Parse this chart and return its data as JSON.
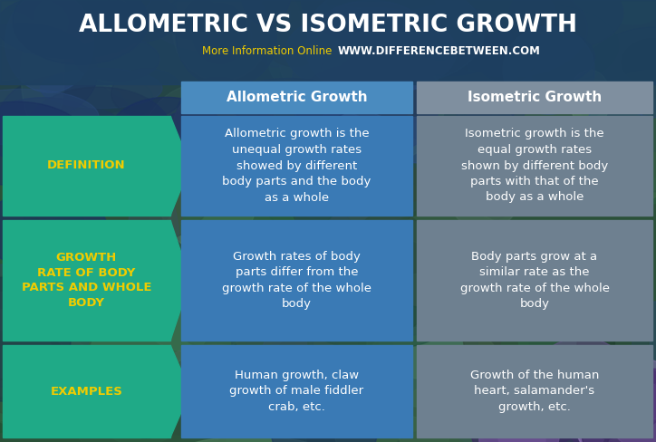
{
  "title": "ALLOMETRIC VS ISOMETRIC GROWTH",
  "subtitle_left": "More Information Online",
  "subtitle_right": "WWW.DIFFERENCEBETWEEN.COM",
  "col_headers": [
    "Allometric Growth",
    "Isometric Growth"
  ],
  "row_labels": [
    "DEFINITION",
    "GROWTH\nRATE OF BODY\nPARTS AND WHOLE\nBODY",
    "EXAMPLES"
  ],
  "allometric_cells": [
    "Allometric growth is the\nunequal growth rates\nshowed by different\nbody parts and the body\nas a whole",
    "Growth rates of body\nparts differ from the\ngrowth rate of the whole\nbody",
    "Human growth, claw\ngrowth of male fiddler\ncrab, etc."
  ],
  "isometric_cells": [
    "Isometric growth is the\nequal growth rates\nshown by different body\nparts with that of the\nbody as a whole",
    "Body parts grow at a\nsimilar rate as the\ngrowth rate of the whole\nbody",
    "Growth of the human\nheart, salamander's\ngrowth, etc."
  ],
  "teal_color": "#1faa87",
  "allometric_header_color": "#4a8bbf",
  "isometric_header_color": "#7f8f9f",
  "allometric_cell_color": "#3a7ab5",
  "isometric_cell_color": "#6e8090",
  "label_text_color": "#f0cc00",
  "header_text_color": "#ffffff",
  "cell_text_color": "#ffffff",
  "title_color": "#ffffff",
  "subtitle_left_color": "#f0cc00",
  "subtitle_right_color": "#ffffff",
  "title_bg_color": "#1e4060",
  "photo_bg_colors": [
    "#2a5530",
    "#1a3a50",
    "#3a6040",
    "#2a4a60"
  ],
  "figw": 7.24,
  "figh": 4.88,
  "dpi": 100
}
